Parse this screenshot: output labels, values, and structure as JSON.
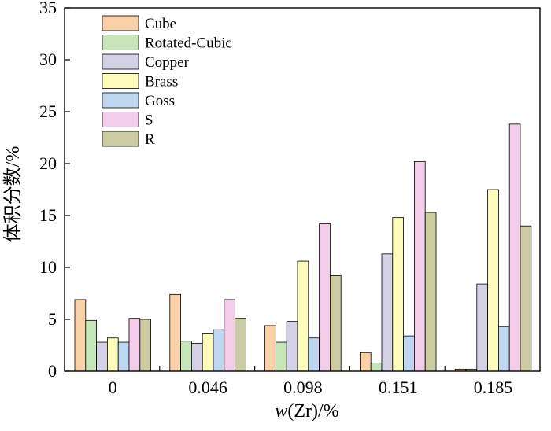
{
  "chart_data": {
    "type": "bar",
    "xlabel_prefix": "w",
    "xlabel_suffix": "(Zr)/%",
    "ylabel": "体积分数/%",
    "categories": [
      "0",
      "0.046",
      "0.098",
      "0.151",
      "0.185"
    ],
    "ylim": [
      0,
      35
    ],
    "yticks": [
      0,
      5,
      10,
      15,
      20,
      25,
      30,
      35
    ],
    "grid": false,
    "legend_position": "top-left",
    "series": [
      {
        "name": "Cube",
        "color": "#FAD0A8",
        "values": [
          6.9,
          7.4,
          4.4,
          1.8,
          0.2
        ]
      },
      {
        "name": "Rotated-Cubic",
        "color": "#C6E6BA",
        "values": [
          4.9,
          2.9,
          2.8,
          0.8,
          0.2
        ]
      },
      {
        "name": "Copper",
        "color": "#D4D0E6",
        "values": [
          2.8,
          2.7,
          4.8,
          11.3,
          8.4
        ]
      },
      {
        "name": "Brass",
        "color": "#FDFCBA",
        "values": [
          3.2,
          3.6,
          10.6,
          14.8,
          17.5
        ]
      },
      {
        "name": "Goss",
        "color": "#BED6F0",
        "values": [
          2.8,
          4.0,
          3.2,
          3.4,
          4.3
        ]
      },
      {
        "name": "S",
        "color": "#F3CCEA",
        "values": [
          5.1,
          6.9,
          14.2,
          20.2,
          23.8
        ]
      },
      {
        "name": "R",
        "color": "#CCCBA2",
        "values": [
          5.0,
          5.1,
          9.2,
          15.3,
          14.0
        ]
      }
    ]
  }
}
